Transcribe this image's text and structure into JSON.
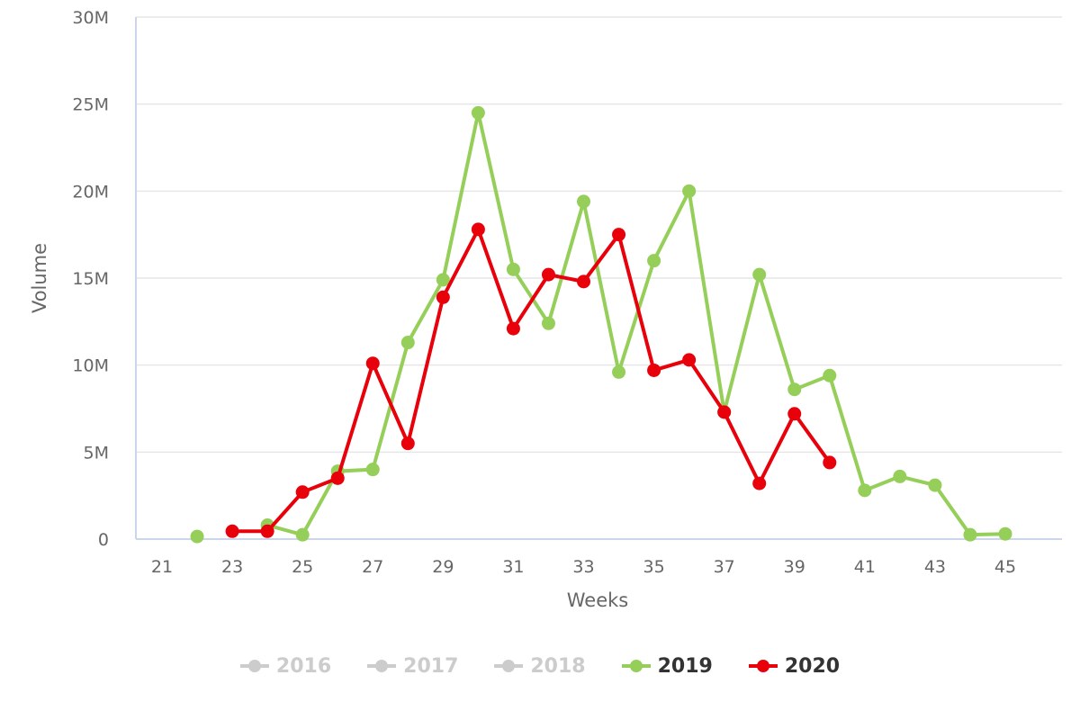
{
  "chart_data": {
    "type": "line",
    "title": "",
    "xlabel": "Weeks",
    "ylabel": "Volume",
    "ylim": [
      0,
      30000000
    ],
    "xlim": [
      21,
      46
    ],
    "grid": true,
    "legend_position": "bottom",
    "x_ticks": [
      "21",
      "23",
      "25",
      "27",
      "29",
      "31",
      "33",
      "35",
      "37",
      "39",
      "41",
      "43",
      "45"
    ],
    "y_ticks": [
      "0",
      "5M",
      "10M",
      "15M",
      "20M",
      "25M",
      "30M"
    ],
    "series": [
      {
        "name": "2016",
        "color": "#cccccc",
        "visible": false,
        "x": [],
        "values": []
      },
      {
        "name": "2017",
        "color": "#cccccc",
        "visible": false,
        "x": [],
        "values": []
      },
      {
        "name": "2018",
        "color": "#cccccc",
        "visible": false,
        "x": [],
        "values": []
      },
      {
        "name": "2019",
        "color": "#95cf5a",
        "visible": true,
        "x": [
          22,
          24,
          25,
          26,
          27,
          28,
          29,
          30,
          31,
          32,
          33,
          34,
          35,
          36,
          37,
          38,
          39,
          40,
          41,
          42,
          43,
          44,
          45
        ],
        "values": [
          150000,
          800000,
          250000,
          3900000,
          4000000,
          11300000,
          14900000,
          24500000,
          15500000,
          12400000,
          19400000,
          9600000,
          16000000,
          20000000,
          7300000,
          15200000,
          8600000,
          9400000,
          2800000,
          3600000,
          3100000,
          250000,
          300000
        ]
      },
      {
        "name": "2020",
        "color": "#e8000a",
        "visible": true,
        "x": [
          23,
          24,
          25,
          26,
          27,
          28,
          29,
          30,
          31,
          32,
          33,
          34,
          35,
          36,
          37,
          38,
          39,
          40
        ],
        "values": [
          450000,
          450000,
          2700000,
          3500000,
          10100000,
          5500000,
          13900000,
          17800000,
          12100000,
          15200000,
          14800000,
          17500000,
          9700000,
          10300000,
          7300000,
          3200000,
          7200000,
          4400000
        ]
      }
    ]
  },
  "legend": {
    "items": [
      {
        "label": "2016",
        "color": "#cccccc",
        "text_color": "#cccccc"
      },
      {
        "label": "2017",
        "color": "#cccccc",
        "text_color": "#cccccc"
      },
      {
        "label": "2018",
        "color": "#cccccc",
        "text_color": "#cccccc"
      },
      {
        "label": "2019",
        "color": "#95cf5a",
        "text_color": "#333333"
      },
      {
        "label": "2020",
        "color": "#e8000a",
        "text_color": "#333333"
      }
    ]
  },
  "colors": {
    "grid": "#e6e6e6",
    "axis": "#ccd6eb",
    "label": "#666666"
  }
}
